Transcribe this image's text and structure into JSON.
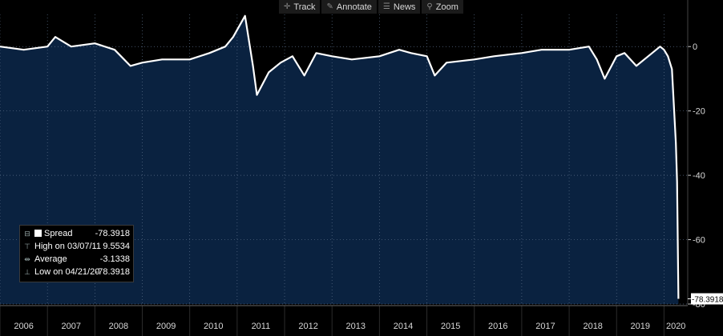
{
  "toolbar": {
    "items": [
      {
        "label": "Track",
        "icon": "crosshair-icon"
      },
      {
        "label": "Annotate",
        "icon": "pencil-icon"
      },
      {
        "label": "News",
        "icon": "news-icon"
      },
      {
        "label": "Zoom",
        "icon": "magnifier-icon"
      }
    ]
  },
  "legend": {
    "rows": [
      {
        "label": "Spread",
        "value": "-78.3918",
        "icon": "series-swatch"
      },
      {
        "label": "High on 03/07/11",
        "value": "9.5534",
        "icon": "high-marker-icon"
      },
      {
        "label": "Average",
        "value": "-3.1338",
        "icon": "average-marker-icon"
      },
      {
        "label": "Low on 04/21/20",
        "value": "-78.3918",
        "icon": "low-marker-icon"
      }
    ]
  },
  "last_value_label": "-78.3918",
  "colors": {
    "background": "#000000",
    "area_fill": "#0a2240",
    "line": "#ffffff",
    "grid": "#5a6e88"
  },
  "chart_data": {
    "type": "area",
    "series": [
      {
        "name": "Spread",
        "x": [
          "2006-01",
          "2006-07",
          "2007-01",
          "2007-03",
          "2007-07",
          "2008-01",
          "2008-06",
          "2008-10",
          "2009-01",
          "2009-06",
          "2010-01",
          "2010-06",
          "2010-10",
          "2010-12",
          "2011-03",
          "2011-05",
          "2011-06",
          "2011-09",
          "2011-12",
          "2012-03",
          "2012-06",
          "2012-09",
          "2013-01",
          "2013-06",
          "2014-01",
          "2014-06",
          "2014-09",
          "2015-01",
          "2015-03",
          "2015-06",
          "2016-01",
          "2016-06",
          "2017-01",
          "2017-06",
          "2018-01",
          "2018-06",
          "2018-08",
          "2018-10",
          "2019-01",
          "2019-03",
          "2019-06",
          "2019-09",
          "2019-12",
          "2020-01",
          "2020-02",
          "2020-03",
          "2020-04",
          "2020-04-10",
          "2020-04-21"
        ],
        "values": [
          0,
          -1,
          0,
          3,
          0,
          1,
          -1,
          -6,
          -5,
          -4,
          -4,
          -2,
          0,
          3,
          9.5534,
          -6,
          -15,
          -8,
          -5,
          -3,
          -9,
          -2,
          -3,
          -4,
          -3,
          -1,
          -2,
          -3,
          -9,
          -5,
          -4,
          -3,
          -2,
          -1,
          -1,
          0,
          -4,
          -10,
          -3,
          -2,
          -6,
          -3,
          0,
          -1,
          -3,
          -7,
          -30,
          -42,
          -78.3918
        ]
      }
    ],
    "xlim": [
      "2006-01",
      "2020-07"
    ],
    "ylim": [
      -80,
      10
    ],
    "yticks": [
      0,
      -20,
      -40,
      -60,
      -80
    ],
    "xtick_labels": [
      "2006",
      "2007",
      "2008",
      "2009",
      "2010",
      "2011",
      "2012",
      "2013",
      "2014",
      "2015",
      "2016",
      "2017",
      "2018",
      "2019",
      "2020"
    ],
    "y_axis_side": "right",
    "grid": true,
    "legend": "bottom-left"
  }
}
